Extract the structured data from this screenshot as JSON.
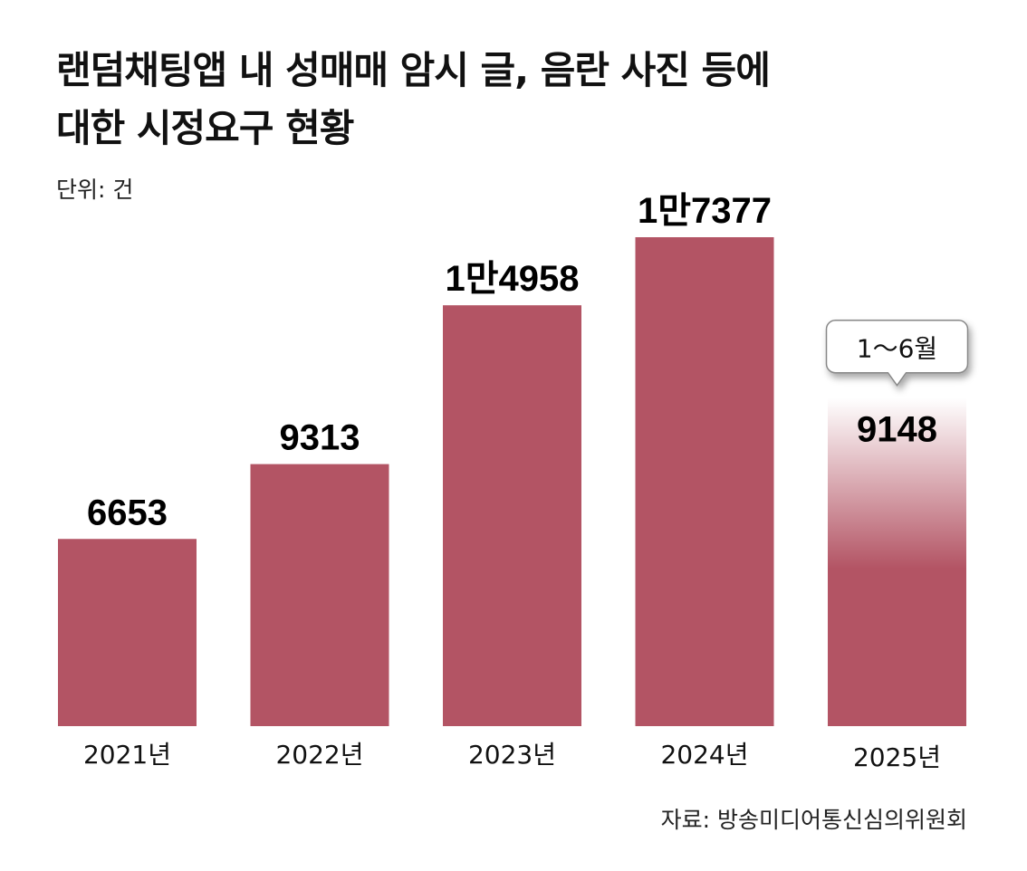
{
  "title_lines": [
    "랜덤채팅앱 내 성매매 암시 글, 음란 사진 등에",
    "대한 시정요구 현황"
  ],
  "unit": "단위: 건",
  "source": "자료: 방송미디어통신심의위원회",
  "colors": {
    "bar": "#b35464"
  },
  "chart_data": {
    "type": "bar",
    "title": "랜덤채팅앱 내 성매매 암시 글, 음란 사진 등에 대한 시정요구 현황",
    "categories": [
      "2021년",
      "2022년",
      "2023년",
      "2024년",
      "2025년"
    ],
    "values": [
      6653,
      9313,
      14958,
      17377,
      9148
    ],
    "value_labels": [
      "6653",
      "9313",
      "1만4958",
      "1만7377",
      "9148"
    ],
    "annotations": [
      {
        "category": "2025년",
        "text": "1～6월"
      }
    ],
    "ylabel": "건",
    "xlabel": "",
    "ylim": [
      0,
      17377
    ],
    "grid": false
  }
}
